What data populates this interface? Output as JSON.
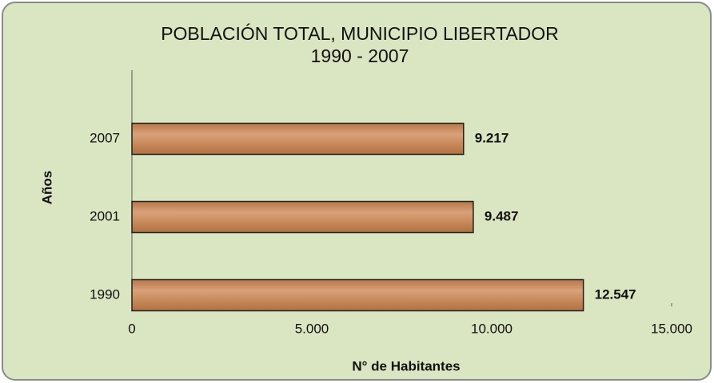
{
  "chart_data": {
    "type": "barh",
    "title": "POBLACIÓN TOTAL, MUNICIPIO LIBERTADOR",
    "subtitle": "1990 - 2007",
    "x_label": "N° de Habitantes",
    "y_label": "Años",
    "categories": [
      "2007",
      "2001",
      "1990"
    ],
    "values": [
      9217,
      9487,
      12547
    ],
    "value_labels": [
      "9.217",
      "9.487",
      "12.547"
    ],
    "color": "#c98a5c",
    "xlim": [
      0,
      15000
    ],
    "xticks": [
      0,
      {
        "value": 5000,
        "label": "5.000"
      },
      {
        "value": 10000,
        "label": "10.000"
      },
      {
        "value": 15000,
        "label": "15.000"
      }
    ],
    "grid": false
  }
}
